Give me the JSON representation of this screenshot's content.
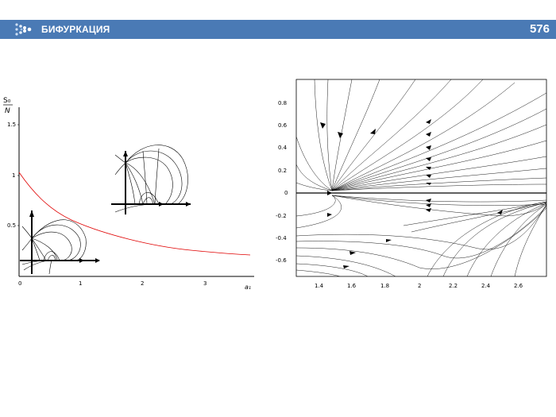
{
  "header": {
    "title": "БИФУРКАЦИЯ",
    "page_number": "576",
    "bar_color": "#4a7ab5",
    "logo_icon": "dots-chevron-icon"
  },
  "left_figure": {
    "y_label_num": "S₀",
    "y_label_den": "N",
    "x_label": "a₁",
    "x_ticks": [
      "0",
      "1",
      "2",
      "3"
    ],
    "y_ticks": [
      "0.5",
      "1",
      "1.5"
    ],
    "curve_color": "#e00000"
  },
  "right_figure": {
    "x_ticks": [
      "1.4",
      "1.6",
      "1.8",
      "2",
      "2.2",
      "2.4",
      "2.6"
    ],
    "y_ticks": [
      "0.8",
      "0.6",
      "0.4",
      "0.2",
      "0",
      "-0.2",
      "-0.4",
      "-0.6"
    ]
  }
}
